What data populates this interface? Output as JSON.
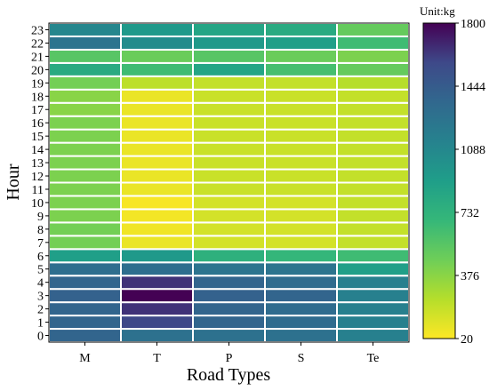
{
  "chart_data": {
    "type": "heatmap",
    "xlabel": "Road Types",
    "ylabel": "Hour",
    "x_categories": [
      "M",
      "T",
      "P",
      "S",
      "Te"
    ],
    "y_categories": [
      "0",
      "1",
      "2",
      "3",
      "4",
      "5",
      "6",
      "7",
      "8",
      "9",
      "10",
      "11",
      "12",
      "13",
      "14",
      "15",
      "16",
      "17",
      "18",
      "19",
      "20",
      "21",
      "22",
      "23"
    ],
    "values": [
      [
        1380,
        1280,
        1280,
        1280,
        1150
      ],
      [
        1380,
        1580,
        1380,
        1320,
        1150
      ],
      [
        1380,
        1650,
        1380,
        1320,
        1150
      ],
      [
        1400,
        1800,
        1400,
        1380,
        1150
      ],
      [
        1380,
        1650,
        1380,
        1320,
        1150
      ],
      [
        1300,
        1300,
        1250,
        1250,
        900
      ],
      [
        900,
        950,
        750,
        700,
        650
      ],
      [
        450,
        80,
        150,
        150,
        200
      ],
      [
        450,
        60,
        150,
        150,
        200
      ],
      [
        420,
        50,
        150,
        150,
        200
      ],
      [
        420,
        40,
        150,
        150,
        200
      ],
      [
        420,
        80,
        180,
        180,
        200
      ],
      [
        420,
        80,
        180,
        180,
        200
      ],
      [
        420,
        80,
        180,
        180,
        200
      ],
      [
        420,
        80,
        180,
        180,
        200
      ],
      [
        420,
        80,
        180,
        180,
        200
      ],
      [
        420,
        80,
        180,
        180,
        200
      ],
      [
        380,
        80,
        180,
        180,
        200
      ],
      [
        380,
        80,
        180,
        180,
        200
      ],
      [
        450,
        220,
        200,
        200,
        240
      ],
      [
        800,
        650,
        850,
        620,
        500
      ],
      [
        550,
        480,
        550,
        480,
        420
      ],
      [
        1250,
        1050,
        950,
        900,
        650
      ],
      [
        1100,
        950,
        850,
        800,
        500
      ]
    ],
    "colorbar": {
      "label": "Unit:kg",
      "min": 20,
      "max": 1800,
      "ticks": [
        "1800",
        "1444",
        "1088",
        "732",
        "376",
        "20"
      ],
      "colormap": "viridis_r"
    },
    "grid": false
  }
}
